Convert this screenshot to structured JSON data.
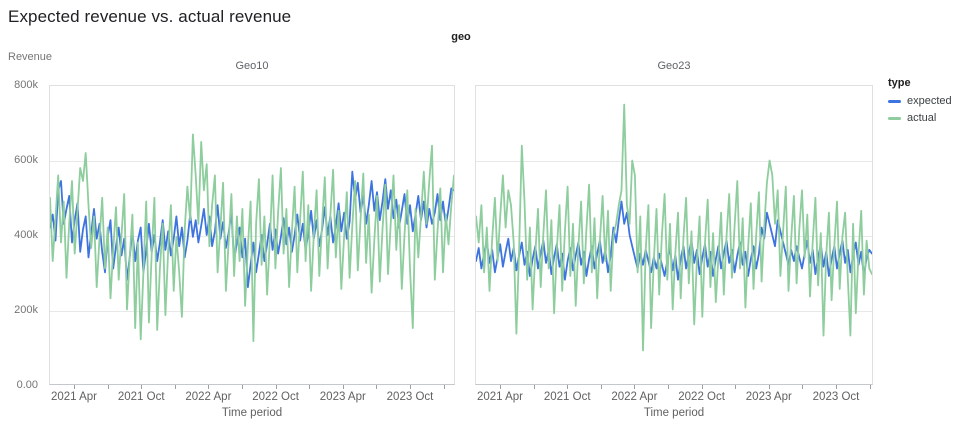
{
  "page": {
    "title": "Expected revenue vs. actual revenue"
  },
  "chart": {
    "facet_field_label": "geo",
    "y_axis_title": "Revenue",
    "x_axis_title": "Time period",
    "legend": {
      "title": "type",
      "items": [
        {
          "label": "expected",
          "series": "expected"
        },
        {
          "label": "actual",
          "series": "actual"
        }
      ]
    }
  },
  "chart_data": {
    "type": "line",
    "title": "Expected revenue vs. actual revenue",
    "facet_field": "geo",
    "xlabel": "Time period",
    "ylabel": "Revenue",
    "ylim": [
      0,
      800000
    ],
    "values_unit": "thousands",
    "frequency": "weekly",
    "x_range": "2021-02 to 2023-12",
    "grid": "horizontal",
    "legend_position": "right",
    "y_tick_labels": [
      "800k",
      "600k",
      "400k",
      "200k",
      "0.00"
    ],
    "x_tick_labels": [
      "2021 Apr",
      "2021 Oct",
      "2022 Apr",
      "2022 Oct",
      "2023 Apr",
      "2023 Oct"
    ],
    "series_colors": {
      "expected": "#3d74e0",
      "actual": "#8ecd9d"
    },
    "facets": [
      {
        "name": "Geo10",
        "series": [
          {
            "name": "expected",
            "values": [
              420,
              455,
              385,
              520,
              545,
              430,
              470,
              505,
              380,
              440,
              485,
              355,
              415,
              450,
              340,
              405,
              470,
              390,
              430,
              355,
              300,
              395,
              440,
              310,
              370,
              420,
              345,
              390,
              280,
              340,
              410,
              330,
              385,
              420,
              300,
              360,
              430,
              355,
              400,
              330,
              380,
              440,
              360,
              410,
              345,
              390,
              450,
              370,
              420,
              340,
              385,
              455,
              395,
              440,
              380,
              425,
              470,
              400,
              450,
              370,
              410,
              480,
              390,
              435,
              365,
              405,
              460,
              330,
              380,
              420,
              340,
              390,
              260,
              320,
              380,
              300,
              350,
              400,
              330,
              375,
              430,
              360,
              415,
              350,
              395,
              445,
              375,
              420,
              355,
              400,
              455,
              385,
              430,
              360,
              405,
              465,
              390,
              440,
              370,
              415,
              475,
              400,
              450,
              380,
              425,
              485,
              410,
              460,
              390,
              435,
              570,
              495,
              540,
              460,
              505,
              430,
              480,
              545,
              465,
              515,
              440,
              490,
              550,
              470,
              520,
              445,
              495,
              420,
              465,
              510,
              430,
              480,
              410,
              455,
              505,
              440,
              490,
              420,
              470,
              430,
              460,
              510,
              440,
              490,
              425,
              470,
              525,
              520
            ]
          },
          {
            "name": "actual",
            "values": [
              500,
              330,
              445,
              560,
              380,
              490,
              285,
              430,
              545,
              350,
              465,
              580,
              545,
              620,
              480,
              365,
              450,
              260,
              390,
              500,
              310,
              420,
              230,
              360,
              475,
              280,
              400,
              510,
              200,
              340,
              455,
              150,
              380,
              120,
              300,
              490,
              165,
              350,
              500,
              145,
              310,
              430,
              185,
              360,
              480,
              250,
              395,
              300,
              180,
              415,
              530,
              440,
              670,
              560,
              430,
              650,
              520,
              590,
              370,
              480,
              560,
              300,
              420,
              540,
              250,
              380,
              510,
              290,
              450,
              330,
              470,
              210,
              370,
              490,
              115,
              430,
              550,
              320,
              450,
              240,
              390,
              560,
              310,
              460,
              580,
              350,
              470,
              260,
              410,
              530,
              300,
              440,
              570,
              330,
              480,
              250,
              400,
              520,
              290,
              430,
              555,
              310,
              450,
              575,
              340,
              465,
              255,
              395,
              515,
              285,
              425,
              545,
              305,
              445,
              565,
              325,
              455,
              245,
              385,
              505,
              275,
              415,
              535,
              295,
              435,
              560,
              360,
              480,
              255,
              400,
              520,
              310,
              150,
              470,
              340,
              450,
              570,
              430,
              545,
              640,
              280,
              410,
              525,
              300,
              455,
              375,
              480,
              560
            ]
          }
        ]
      },
      {
        "name": "Geo23",
        "series": [
          {
            "name": "expected",
            "values": [
              330,
              365,
              310,
              350,
              385,
              325,
              360,
              300,
              340,
              375,
              315,
              355,
              390,
              330,
              365,
              305,
              345,
              380,
              320,
              355,
              290,
              335,
              370,
              310,
              350,
              385,
              325,
              360,
              295,
              340,
              375,
              315,
              350,
              280,
              330,
              365,
              305,
              345,
              380,
              320,
              355,
              290,
              335,
              370,
              310,
              350,
              385,
              325,
              360,
              300,
              345,
              420,
              380,
              440,
              490,
              430,
              460,
              400,
              370,
              340,
              310,
              350,
              320,
              360,
              330,
              300,
              340,
              310,
              350,
              320,
              290,
              330,
              365,
              305,
              345,
              280,
              335,
              370,
              310,
              350,
              385,
              325,
              360,
              295,
              340,
              375,
              315,
              355,
              290,
              335,
              370,
              310,
              350,
              385,
              325,
              360,
              300,
              345,
              380,
              320,
              355,
              290,
              335,
              370,
              310,
              350,
              420,
              390,
              460,
              430,
              400,
              370,
              440,
              410,
              380,
              350,
              320,
              360,
              330,
              370,
              340,
              310,
              350,
              385,
              325,
              360,
              295,
              340,
              375,
              315,
              355,
              290,
              335,
              370,
              310,
              350,
              385,
              325,
              360,
              300,
              345,
              380,
              320,
              355,
              290,
              340,
              360,
              350
            ]
          },
          {
            "name": "actual",
            "values": [
              450,
              380,
              480,
              300,
              420,
              250,
              390,
              500,
              330,
              450,
              560,
              420,
              520,
              480,
              380,
              135,
              360,
              640,
              490,
              280,
              420,
              200,
              350,
              470,
              260,
              400,
              520,
              310,
              440,
              190,
              360,
              480,
              250,
              410,
              530,
              290,
              430,
              210,
              370,
              490,
              270,
              415,
              535,
              300,
              445,
              230,
              385,
              505,
              330,
              465,
              250,
              400,
              430,
              480,
              520,
              750,
              480,
              430,
              600,
              560,
              300,
              450,
              90,
              360,
              480,
              150,
              330,
              470,
              240,
              400,
              510,
              280,
              430,
              200,
              350,
              460,
              230,
              390,
              500,
              270,
              410,
              160,
              330,
              450,
              180,
              380,
              495,
              260,
              405,
              220,
              340,
              460,
              240,
              395,
              510,
              285,
              425,
              545,
              310,
              445,
              205,
              365,
              485,
              255,
              400,
              515,
              275,
              420,
              540,
              600,
              560,
              430,
              520,
              290,
              410,
              530,
              250,
              390,
              505,
              270,
              415,
              520,
              340,
              455,
              235,
              380,
              500,
              265,
              405,
              130,
              345,
              460,
              225,
              370,
              490,
              255,
              395,
              460,
              285,
              130,
              430,
              190,
              350,
              465,
              240,
              385,
              310,
              295
            ]
          }
        ]
      }
    ]
  }
}
